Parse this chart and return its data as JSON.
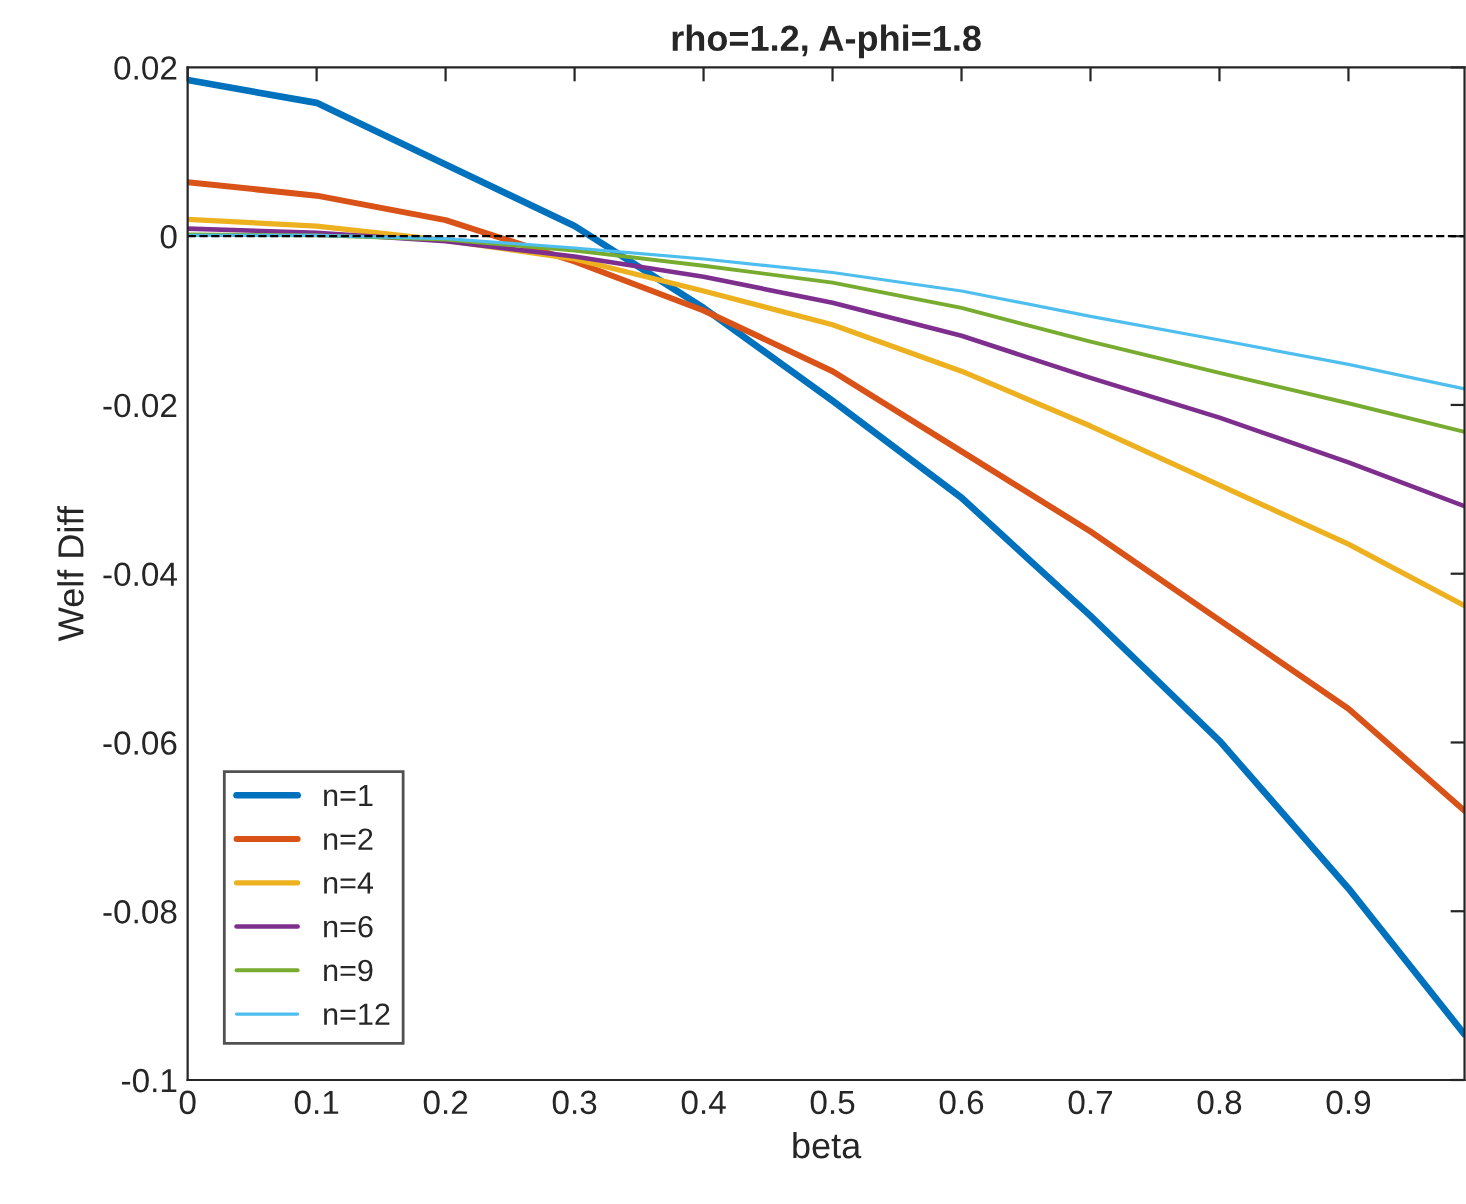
{
  "chart_data": {
    "type": "line",
    "title": "rho=1.2, A-phi=1.8",
    "xlabel": "beta",
    "ylabel": "Welf Diff",
    "x": [
      0,
      0.1,
      0.2,
      0.3,
      0.4,
      0.5,
      0.6,
      0.7,
      0.8,
      0.9,
      0.99
    ],
    "series": [
      {
        "name": "n=1",
        "color": "#0072bd",
        "values": [
          0.0185,
          0.0158,
          0.0085,
          0.0012,
          -0.0085,
          -0.0195,
          -0.031,
          -0.045,
          -0.0598,
          -0.0773,
          -0.0946
        ]
      },
      {
        "name": "n=2",
        "color": "#d95319",
        "values": [
          0.0064,
          0.0048,
          0.0019,
          -0.003,
          -0.0088,
          -0.016,
          -0.0255,
          -0.035,
          -0.0455,
          -0.056,
          -0.0681
        ]
      },
      {
        "name": "n=4",
        "color": "#edb120",
        "values": [
          0.002,
          0.0012,
          -0.0005,
          -0.0027,
          -0.0065,
          -0.0105,
          -0.016,
          -0.0225,
          -0.0295,
          -0.0365,
          -0.0438
        ]
      },
      {
        "name": "n=6",
        "color": "#7e2f8e",
        "values": [
          0.0009,
          0.0004,
          -0.0006,
          -0.0024,
          -0.0048,
          -0.0079,
          -0.0118,
          -0.0168,
          -0.0215,
          -0.0268,
          -0.032
        ]
      },
      {
        "name": "n=9",
        "color": "#77ac30",
        "values": [
          0.0002,
          0.0001,
          -0.0004,
          -0.0017,
          -0.0035,
          -0.0055,
          -0.0085,
          -0.0125,
          -0.0162,
          -0.0198,
          -0.0232
        ]
      },
      {
        "name": "n=12",
        "color": "#4dbeee",
        "values": [
          0.0001,
          0.0001,
          -0.0003,
          -0.0014,
          -0.0027,
          -0.0043,
          -0.0065,
          -0.0095,
          -0.0123,
          -0.0152,
          -0.0181
        ]
      }
    ],
    "ref_lines": [
      {
        "axis": "y",
        "value": 0,
        "color": "#000000",
        "line_style": "dashed"
      }
    ],
    "xlim": [
      0,
      0.99
    ],
    "xticks": [
      0,
      0.1,
      0.2,
      0.3,
      0.4,
      0.5,
      0.6,
      0.7,
      0.8,
      0.9
    ],
    "ylim": [
      -0.1,
      0.02
    ],
    "yticks": [
      -0.1,
      -0.08,
      -0.06,
      -0.04,
      -0.02,
      0,
      0.02
    ],
    "grid": false,
    "legend": "bottom left",
    "marker": "none",
    "line_style": "solid"
  }
}
